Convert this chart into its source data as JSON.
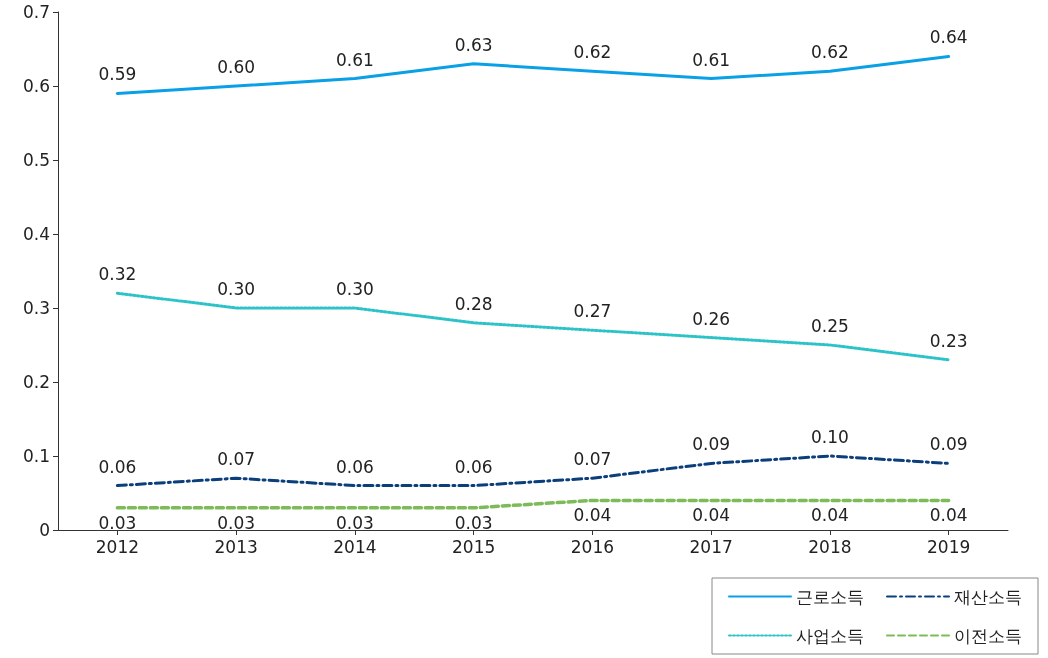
{
  "chart_data": {
    "type": "line",
    "categories": [
      "2012",
      "2013",
      "2014",
      "2015",
      "2016",
      "2017",
      "2018",
      "2019"
    ],
    "series": [
      {
        "name": "근로소득",
        "color": "#0aa0e6",
        "line_style": "solid",
        "values": [
          0.59,
          0.6,
          0.61,
          0.63,
          0.62,
          0.61,
          0.62,
          0.64
        ],
        "value_labels": [
          "0.59",
          "0.60",
          "0.61",
          "0.63",
          "0.62",
          "0.61",
          "0.62",
          "0.64"
        ]
      },
      {
        "name": "사업소득",
        "color": "#2cc3c8",
        "line_style": "dotted",
        "values": [
          0.32,
          0.3,
          0.3,
          0.28,
          0.27,
          0.26,
          0.25,
          0.23
        ],
        "value_labels": [
          "0.32",
          "0.30",
          "0.30",
          "0.28",
          "0.27",
          "0.26",
          "0.25",
          "0.23"
        ]
      },
      {
        "name": "재산소득",
        "color": "#0b3f7c",
        "line_style": "dashdot",
        "values": [
          0.06,
          0.07,
          0.06,
          0.06,
          0.07,
          0.09,
          0.1,
          0.09
        ],
        "value_labels": [
          "0.06",
          "0.07",
          "0.06",
          "0.06",
          "0.07",
          "0.09",
          "0.10",
          "0.09"
        ]
      },
      {
        "name": "이전소득",
        "color": "#7dbb59",
        "line_style": "dashed",
        "values": [
          0.03,
          0.03,
          0.03,
          0.03,
          0.04,
          0.04,
          0.04,
          0.04
        ],
        "value_labels": [
          "0.03",
          "0.03",
          "0.03",
          "0.03",
          "0.04",
          "0.04",
          "0.04",
          "0.04"
        ]
      }
    ],
    "ylim": [
      0,
      0.7
    ],
    "yticks": [
      0,
      0.1,
      0.2,
      0.3,
      0.4,
      0.5,
      0.6,
      0.7
    ],
    "grid": false,
    "legend": "bottom right",
    "marker": "none"
  }
}
